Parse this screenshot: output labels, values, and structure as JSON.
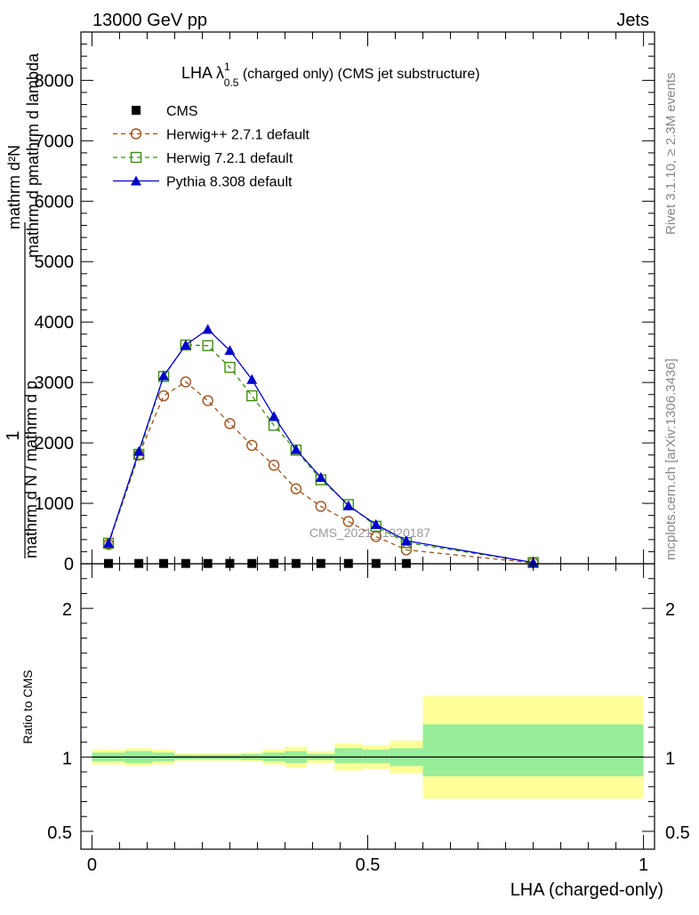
{
  "header": {
    "left": "13000 GeV pp",
    "right": "Jets"
  },
  "side_labels": {
    "rivet": "Rivet 3.1.10, ≥ 2.3M events",
    "mcplots": "mcplots.cern.ch [arXiv:1306.3436]"
  },
  "chart_data": [
    {
      "type": "line",
      "title": {
        "prefix": "LHA λ",
        "sup": "1",
        "sub": "0.5",
        "suffix": " (charged only) (CMS jet substructure)"
      },
      "ylabel": {
        "numerator": "1",
        "denominator": "mathrm d N / mathrm d p",
        "right_numerator": "mathrm d²N",
        "right_denominator": "mathrm d p",
        "right_rest": "mathrm d lambda"
      },
      "ylim": [
        0,
        8800
      ],
      "xlim": [
        -0.02,
        1.02
      ],
      "yticks": [
        0,
        1000,
        2000,
        3000,
        4000,
        5000,
        6000,
        7000,
        8000
      ],
      "ytick_labels": [
        "0",
        "1000",
        "2000",
        "3000",
        "4000",
        "5000",
        "6000",
        "7000",
        "8000"
      ],
      "watermark": "CMS_2021_I1920187",
      "legend_position": "top-left",
      "series": [
        {
          "name": "CMS",
          "color": "#000000",
          "marker": "square-filled",
          "x": [
            0.03,
            0.085,
            0.13,
            0.17,
            0.21,
            0.25,
            0.29,
            0.33,
            0.37,
            0.415,
            0.465,
            0.515,
            0.57
          ],
          "y": [
            5,
            5,
            5,
            5,
            5,
            5,
            5,
            5,
            5,
            5,
            5,
            5,
            5
          ]
        },
        {
          "name": "Herwig++ 2.7.1 default",
          "color": "#a0521d",
          "marker": "circle-open",
          "x": [
            0.03,
            0.085,
            0.13,
            0.17,
            0.21,
            0.25,
            0.29,
            0.33,
            0.37,
            0.415,
            0.465,
            0.515,
            0.57,
            0.8
          ],
          "y": [
            320,
            1800,
            2780,
            3010,
            2700,
            2320,
            1960,
            1630,
            1240,
            950,
            700,
            450,
            230,
            15
          ]
        },
        {
          "name": "Herwig 7.2.1 default",
          "color": "#3d8f10",
          "marker": "square-open",
          "x": [
            0.03,
            0.085,
            0.13,
            0.17,
            0.21,
            0.25,
            0.29,
            0.33,
            0.37,
            0.415,
            0.465,
            0.515,
            0.57,
            0.8
          ],
          "y": [
            340,
            1810,
            3100,
            3620,
            3610,
            3250,
            2780,
            2290,
            1880,
            1390,
            980,
            620,
            350,
            20
          ]
        },
        {
          "name": "Pythia 8.308 default",
          "color": "#0000cc",
          "marker": "triangle-filled",
          "x": [
            0.03,
            0.085,
            0.13,
            0.17,
            0.21,
            0.25,
            0.29,
            0.33,
            0.37,
            0.415,
            0.465,
            0.515,
            0.57,
            0.8
          ],
          "y": [
            340,
            1860,
            3110,
            3620,
            3880,
            3530,
            3050,
            2440,
            1890,
            1430,
            960,
            650,
            380,
            20
          ]
        }
      ]
    },
    {
      "type": "area",
      "ylabel": "Ratio to CMS",
      "xlabel": "LHA (charged-only)",
      "xlim": [
        -0.02,
        1.02
      ],
      "ylim": [
        0.38,
        2.3
      ],
      "ratio_reference": 1,
      "yticks": [
        0.5,
        1,
        2
      ],
      "ytick_labels": [
        "0.5",
        "1",
        "2"
      ],
      "xticks": [
        0,
        0.5,
        1
      ],
      "xtick_labels": [
        "0",
        "0.5",
        "1"
      ],
      "band_colors": {
        "inner": "#99ee99",
        "outer": "#ffff99"
      },
      "bins": [
        {
          "x0": 0.0,
          "x1": 0.06,
          "inner": [
            0.97,
            1.03
          ],
          "outer": [
            0.95,
            1.05
          ]
        },
        {
          "x0": 0.06,
          "x1": 0.11,
          "inner": [
            0.96,
            1.04
          ],
          "outer": [
            0.94,
            1.06
          ]
        },
        {
          "x0": 0.11,
          "x1": 0.15,
          "inner": [
            0.97,
            1.03
          ],
          "outer": [
            0.95,
            1.05
          ]
        },
        {
          "x0": 0.15,
          "x1": 0.19,
          "inner": [
            0.985,
            1.015
          ],
          "outer": [
            0.975,
            1.025
          ]
        },
        {
          "x0": 0.19,
          "x1": 0.23,
          "inner": [
            0.985,
            1.015
          ],
          "outer": [
            0.975,
            1.025
          ]
        },
        {
          "x0": 0.23,
          "x1": 0.27,
          "inner": [
            0.985,
            1.015
          ],
          "outer": [
            0.975,
            1.025
          ]
        },
        {
          "x0": 0.27,
          "x1": 0.31,
          "inner": [
            0.98,
            1.02
          ],
          "outer": [
            0.97,
            1.03
          ]
        },
        {
          "x0": 0.31,
          "x1": 0.35,
          "inner": [
            0.97,
            1.03
          ],
          "outer": [
            0.95,
            1.05
          ]
        },
        {
          "x0": 0.35,
          "x1": 0.39,
          "inner": [
            0.96,
            1.04
          ],
          "outer": [
            0.93,
            1.07
          ]
        },
        {
          "x0": 0.39,
          "x1": 0.44,
          "inner": [
            0.98,
            1.02
          ],
          "outer": [
            0.96,
            1.04
          ]
        },
        {
          "x0": 0.44,
          "x1": 0.49,
          "inner": [
            0.96,
            1.06
          ],
          "outer": [
            0.91,
            1.09
          ]
        },
        {
          "x0": 0.49,
          "x1": 0.54,
          "inner": [
            0.96,
            1.05
          ],
          "outer": [
            0.92,
            1.08
          ]
        },
        {
          "x0": 0.54,
          "x1": 0.6,
          "inner": [
            0.94,
            1.06
          ],
          "outer": [
            0.89,
            1.11
          ]
        },
        {
          "x0": 0.6,
          "x1": 1.0,
          "inner": [
            0.87,
            1.22
          ],
          "outer": [
            0.72,
            1.41
          ]
        }
      ]
    }
  ]
}
